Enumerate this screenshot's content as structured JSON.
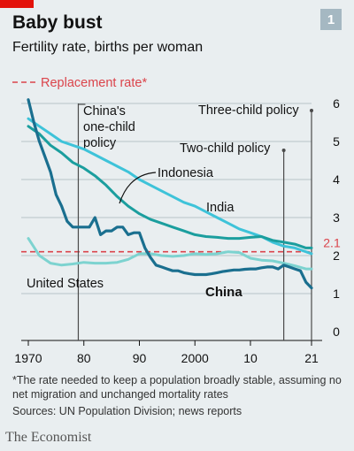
{
  "header": {
    "title": "Baby bust",
    "subtitle": "Fertility rate, births per woman",
    "badge": "1"
  },
  "colors": {
    "china": "#1a6f8f",
    "india": "#3ec3d9",
    "indonesia": "#1b9e9e",
    "united_states": "#7dd3d0",
    "replacement": "#db444b",
    "grid": "#b8c4c8"
  },
  "footnote": "*The rate needed to keep a population broadly stable, assuming no net migration and unchanged mortality rates",
  "sources": "Sources: UN Population Division; news reports",
  "brand": "The Economist",
  "chart_data": {
    "type": "line",
    "title": "Baby bust",
    "subtitle": "Fertility rate, births per woman",
    "xlim": [
      1970,
      2021
    ],
    "ylim": [
      0,
      6
    ],
    "x_ticks": [
      1970,
      1980,
      1990,
      2000,
      2010,
      2021
    ],
    "x_tick_labels": [
      "1970",
      "80",
      "90",
      "2000",
      "10",
      "21"
    ],
    "y_ticks": [
      0,
      1,
      2,
      3,
      4,
      5,
      6
    ],
    "y_tick_labels": [
      "0",
      "1",
      "2",
      "3",
      "4",
      "5",
      "6"
    ],
    "grid": true,
    "reference_line": {
      "value": 2.1,
      "label": "2.1",
      "legend_label": "Replacement rate*"
    },
    "events": [
      {
        "year": 1979,
        "label_lines": [
          "China's",
          "one-child",
          "policy"
        ]
      },
      {
        "year": 2016,
        "label_lines": [
          "Two-child policy"
        ]
      },
      {
        "year": 2021,
        "label_lines": [
          "Three-child policy"
        ]
      }
    ],
    "series": [
      {
        "name": "China",
        "color_key": "china",
        "x": [
          1970,
          1971,
          1972,
          1973,
          1974,
          1975,
          1976,
          1977,
          1978,
          1979,
          1980,
          1981,
          1982,
          1983,
          1984,
          1985,
          1986,
          1987,
          1988,
          1989,
          1990,
          1991,
          1992,
          1993,
          1994,
          1995,
          1996,
          1997,
          1998,
          1999,
          2000,
          2001,
          2002,
          2003,
          2004,
          2005,
          2006,
          2007,
          2008,
          2009,
          2010,
          2011,
          2012,
          2013,
          2014,
          2015,
          2016,
          2017,
          2018,
          2019,
          2020,
          2021
        ],
        "values": [
          6.1,
          5.5,
          5.0,
          4.6,
          4.2,
          3.6,
          3.3,
          2.9,
          2.75,
          2.75,
          2.75,
          2.75,
          3.0,
          2.55,
          2.65,
          2.65,
          2.75,
          2.75,
          2.55,
          2.6,
          2.6,
          2.2,
          1.95,
          1.75,
          1.7,
          1.65,
          1.6,
          1.6,
          1.55,
          1.52,
          1.5,
          1.5,
          1.5,
          1.52,
          1.55,
          1.58,
          1.6,
          1.62,
          1.62,
          1.64,
          1.65,
          1.65,
          1.68,
          1.7,
          1.7,
          1.65,
          1.75,
          1.7,
          1.65,
          1.6,
          1.3,
          1.15
        ]
      },
      {
        "name": "Indonesia",
        "color_key": "indonesia",
        "x": [
          1970,
          1972,
          1974,
          1976,
          1978,
          1980,
          1982,
          1984,
          1986,
          1988,
          1990,
          1992,
          1994,
          1996,
          1998,
          2000,
          2002,
          2004,
          2006,
          2008,
          2010,
          2012,
          2014,
          2016,
          2018,
          2020,
          2021
        ],
        "values": [
          5.4,
          5.2,
          4.9,
          4.7,
          4.45,
          4.3,
          4.1,
          3.85,
          3.55,
          3.3,
          3.1,
          2.95,
          2.85,
          2.75,
          2.65,
          2.55,
          2.5,
          2.48,
          2.45,
          2.45,
          2.48,
          2.5,
          2.4,
          2.35,
          2.3,
          2.2,
          2.2
        ]
      },
      {
        "name": "India",
        "color_key": "india",
        "x": [
          1970,
          1972,
          1974,
          1976,
          1978,
          1980,
          1982,
          1984,
          1986,
          1988,
          1990,
          1992,
          1994,
          1996,
          1998,
          2000,
          2002,
          2004,
          2006,
          2008,
          2010,
          2012,
          2014,
          2016,
          2018,
          2020,
          2021
        ],
        "values": [
          5.6,
          5.4,
          5.2,
          5.0,
          4.9,
          4.8,
          4.65,
          4.5,
          4.35,
          4.2,
          4.0,
          3.85,
          3.7,
          3.55,
          3.4,
          3.3,
          3.15,
          3.0,
          2.85,
          2.7,
          2.6,
          2.5,
          2.35,
          2.25,
          2.2,
          2.1,
          2.05
        ]
      },
      {
        "name": "United States",
        "color_key": "united_states",
        "x": [
          1970,
          1972,
          1974,
          1976,
          1978,
          1980,
          1982,
          1984,
          1986,
          1988,
          1990,
          1992,
          1994,
          1996,
          1998,
          2000,
          2002,
          2004,
          2006,
          2008,
          2010,
          2012,
          2014,
          2016,
          2018,
          2020,
          2021
        ],
        "values": [
          2.45,
          2.0,
          1.8,
          1.75,
          1.78,
          1.82,
          1.8,
          1.8,
          1.82,
          1.9,
          2.05,
          2.05,
          2.0,
          1.98,
          2.0,
          2.05,
          2.03,
          2.05,
          2.1,
          2.08,
          1.93,
          1.88,
          1.86,
          1.8,
          1.73,
          1.65,
          1.65
        ]
      }
    ]
  }
}
